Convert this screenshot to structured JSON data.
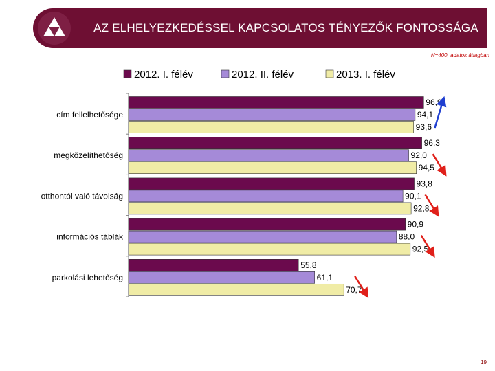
{
  "header": {
    "title": "AZ ELHELYEZKEDÉSSEL KAPCSOLATOS TÉNYEZŐK FONTOSSÁGA",
    "subtitle": "N=400, adatok átlagban"
  },
  "page_number": "19",
  "colors": {
    "header_bg": "#6e0f33",
    "up_arrow": "#1f3fd0",
    "down_arrow": "#e0201a"
  },
  "chart_data": {
    "type": "bar",
    "orientation": "horizontal",
    "categories": [
      "cím fellelhetősége",
      "megközelíthetőség",
      "otthontól való távolság",
      "információs táblák",
      "parkolási lehetőség"
    ],
    "series": [
      {
        "name": "2012. I. félév",
        "color": "#6b0a4d",
        "values": [
          96.9,
          96.3,
          93.8,
          90.9,
          55.8
        ],
        "labels": [
          "96,9",
          "96,3",
          "93,8",
          "90,9",
          "55,8"
        ]
      },
      {
        "name": "2012. II. félév",
        "color": "#a58ad8",
        "values": [
          94.1,
          92.0,
          90.1,
          88.0,
          61.1
        ],
        "labels": [
          "94,1",
          "92,0",
          "90,1",
          "88,0",
          "61,1"
        ]
      },
      {
        "name": "2013. I. félév",
        "color": "#f0eca6",
        "values": [
          93.6,
          94.5,
          92.8,
          92.5,
          70.7
        ],
        "labels": [
          "93,6",
          "94,5",
          "92,8",
          "92,5",
          "70,7"
        ]
      }
    ],
    "trend_arrows": [
      "up",
      "down",
      "down",
      "down",
      "down"
    ],
    "xlim": [
      0,
      100
    ],
    "legend_position": "top",
    "grid": false
  }
}
